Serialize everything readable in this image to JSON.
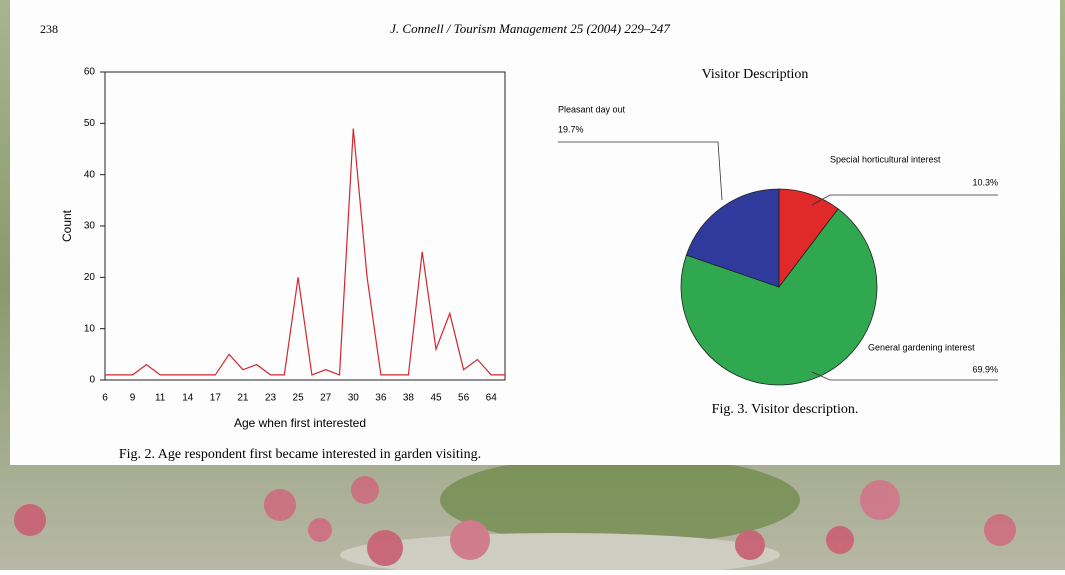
{
  "page": {
    "number": "238",
    "running_head": "J. Connell / Tourism Management 25 (2004) 229–247"
  },
  "chart_data": [
    {
      "type": "line",
      "caption": "Fig. 2. Age respondent first became interested in garden visiting.",
      "x_label": "Age when first interested",
      "y_label": "Count",
      "categories": [
        "6",
        null,
        "9",
        null,
        "11",
        null,
        "14",
        null,
        "17",
        null,
        "21",
        null,
        "23",
        null,
        "25",
        null,
        "27",
        null,
        "30",
        null,
        "36",
        null,
        "38",
        null,
        "45",
        null,
        "56",
        null,
        "64",
        null
      ],
      "values": [
        1,
        1,
        1,
        3,
        1,
        1,
        1,
        1,
        1,
        5,
        2,
        3,
        1,
        1,
        20,
        1,
        2,
        1,
        49,
        20,
        1,
        1,
        1,
        25,
        6,
        13,
        2,
        4,
        1,
        1
      ],
      "color": "#d2272e",
      "ylim": [
        0,
        60
      ],
      "yticks": [
        0,
        10,
        20,
        30,
        40,
        50,
        60
      ]
    },
    {
      "type": "pie",
      "title": "Visitor Description",
      "caption": "Fig. 3. Visitor description.",
      "categories": [
        "Special horticultural interest",
        "General gardening interest",
        "Pleasant day out"
      ],
      "values": [
        10.3,
        69.9,
        19.7
      ],
      "value_labels": [
        "10.3%",
        "69.9%",
        "19.7%"
      ],
      "colors": [
        "#e02a2a",
        "#2fa84f",
        "#2f3a9c"
      ]
    }
  ]
}
